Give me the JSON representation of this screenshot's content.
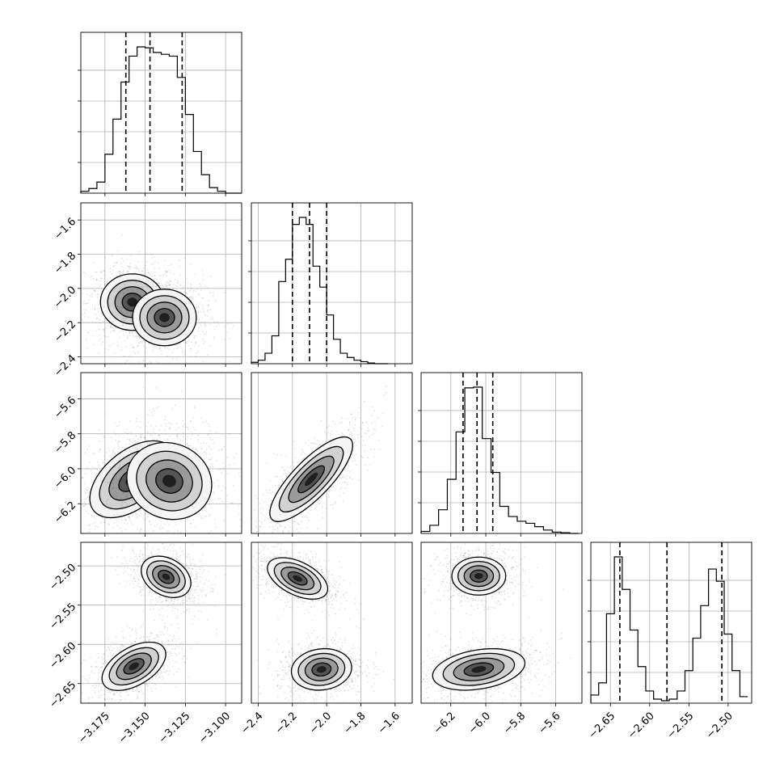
{
  "chart_data": {
    "type": "corner",
    "parameters": [
      {
        "range": [
          -3.19,
          -3.09
        ],
        "ticks": [
          "−3.175",
          "−3.150",
          "−3.125",
          "−3.100"
        ],
        "tick_values": [
          -3.175,
          -3.15,
          -3.125,
          -3.1
        ],
        "quantiles": [
          -3.162,
          -3.147,
          -3.127
        ]
      },
      {
        "range": [
          -2.44,
          -1.5
        ],
        "ticks": [
          "−2.4",
          "−2.2",
          "−2.0",
          "−1.8",
          "−1.6"
        ],
        "tick_values": [
          -2.4,
          -2.2,
          -2.0,
          -1.8,
          -1.6
        ],
        "quantiles": [
          -2.2,
          -2.1,
          -2.0
        ]
      },
      {
        "range": [
          -6.37,
          -5.45
        ],
        "ticks": [
          "−6.2",
          "−6.0",
          "−5.8",
          "−5.6"
        ],
        "tick_values": [
          -6.2,
          -6.0,
          -5.8,
          -5.6
        ],
        "quantiles": [
          -6.13,
          -6.05,
          -5.96
        ]
      },
      {
        "range": [
          -2.675,
          -2.47
        ],
        "ticks": [
          "−2.65",
          "−2.60",
          "−2.55",
          "−2.50"
        ],
        "tick_values": [
          -2.65,
          -2.6,
          -2.55,
          -2.5
        ],
        "quantiles": [
          -2.638,
          -2.578,
          -2.508
        ]
      }
    ],
    "histograms": [
      {
        "bin_edges": [
          -3.19,
          -3.185,
          -3.18,
          -3.175,
          -3.17,
          -3.165,
          -3.16,
          -3.155,
          -3.15,
          -3.145,
          -3.14,
          -3.135,
          -3.13,
          -3.125,
          -3.12,
          -3.115,
          -3.11,
          -3.105,
          -3.1,
          -3.095,
          -3.09
        ],
        "counts": [
          2,
          5,
          12,
          42,
          80,
          120,
          148,
          158,
          157,
          152,
          150,
          148,
          125,
          85,
          45,
          20,
          6,
          2,
          0,
          0
        ]
      },
      {
        "bin_edges": [
          -2.44,
          -2.4,
          -2.36,
          -2.32,
          -2.28,
          -2.24,
          -2.2,
          -2.16,
          -2.12,
          -2.08,
          -2.04,
          -2.0,
          -1.96,
          -1.92,
          -1.88,
          -1.84,
          -1.8,
          -1.76,
          -1.72,
          -1.68,
          -1.64
        ],
        "counts": [
          2,
          5,
          15,
          40,
          118,
          150,
          200,
          210,
          200,
          140,
          110,
          70,
          35,
          15,
          9,
          5,
          3,
          1,
          0,
          0
        ]
      },
      {
        "bin_edges": [
          -6.37,
          -6.32,
          -6.27,
          -6.22,
          -6.17,
          -6.12,
          -6.07,
          -6.02,
          -5.97,
          -5.92,
          -5.87,
          -5.82,
          -5.77,
          -5.72,
          -5.67,
          -5.62,
          -5.57,
          -5.52,
          -5.47
        ],
        "counts": [
          3,
          12,
          35,
          80,
          150,
          215,
          216,
          140,
          90,
          40,
          25,
          18,
          15,
          10,
          5,
          2,
          1,
          0
        ]
      },
      {
        "bin_edges": [
          -2.675,
          -2.665,
          -2.655,
          -2.645,
          -2.635,
          -2.625,
          -2.615,
          -2.605,
          -2.595,
          -2.585,
          -2.575,
          -2.565,
          -2.555,
          -2.545,
          -2.535,
          -2.525,
          -2.515,
          -2.505,
          -2.495,
          -2.485,
          -2.475
        ],
        "counts": [
          10,
          25,
          110,
          180,
          140,
          90,
          45,
          15,
          5,
          3,
          5,
          15,
          40,
          80,
          120,
          165,
          150,
          85,
          40,
          8
        ]
      }
    ],
    "blobs": [
      [
        [
          -3.158,
          -2.08,
          0.009,
          0.075,
          0
        ],
        [
          -3.138,
          -2.17,
          0.009,
          0.075,
          0
        ]
      ],
      [
        [
          -3.158,
          -6.06,
          0.012,
          0.1,
          0.5
        ],
        [
          -3.135,
          -6.07,
          0.012,
          0.1,
          -0.1
        ]
      ],
      [
        [
          -3.157,
          -2.628,
          0.009,
          0.014,
          0.5
        ],
        [
          -3.137,
          -2.514,
          0.007,
          0.012,
          -0.3
        ]
      ],
      [
        [
          -2.09,
          -6.06,
          0.11,
          0.11,
          0.8
        ]
      ],
      [
        [
          -2.17,
          -2.516,
          0.08,
          0.012,
          -0.5
        ],
        [
          -2.03,
          -2.632,
          0.08,
          0.012,
          0.1
        ]
      ],
      [
        [
          -6.04,
          -2.513,
          0.07,
          0.011,
          0
        ],
        [
          -6.04,
          -2.632,
          0.12,
          0.012,
          0.3
        ]
      ]
    ],
    "grid": true,
    "contours": true,
    "scatter": true
  }
}
